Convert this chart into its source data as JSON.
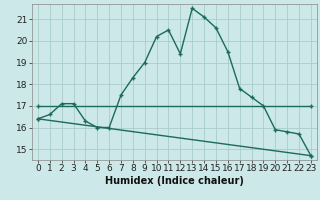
{
  "xlabel": "Humidex (Indice chaleur)",
  "background_color": "#cce8e8",
  "grid_color": "#aacccc",
  "line_color": "#1a6b5a",
  "xlim": [
    -0.5,
    23.5
  ],
  "ylim": [
    14.5,
    21.7
  ],
  "xticks": [
    0,
    1,
    2,
    3,
    4,
    5,
    6,
    7,
    8,
    9,
    10,
    11,
    12,
    13,
    14,
    15,
    16,
    17,
    18,
    19,
    20,
    21,
    22,
    23
  ],
  "yticks": [
    15,
    16,
    17,
    18,
    19,
    20,
    21
  ],
  "line1_x": [
    0,
    1,
    2,
    3,
    4,
    5,
    6,
    7,
    8,
    9,
    10,
    11,
    12,
    13,
    14,
    15,
    16,
    17,
    18,
    19,
    20,
    21,
    22,
    23
  ],
  "line1_y": [
    16.4,
    16.6,
    17.1,
    17.1,
    16.3,
    16.0,
    16.0,
    17.5,
    18.3,
    19.0,
    20.2,
    20.5,
    19.4,
    21.5,
    21.1,
    20.6,
    19.5,
    17.8,
    17.4,
    17.0,
    15.9,
    15.8,
    15.7,
    14.7
  ],
  "line2_x": [
    0,
    23
  ],
  "line2_y": [
    17.0,
    17.0
  ],
  "line3_x": [
    0,
    23
  ],
  "line3_y": [
    16.4,
    14.7
  ],
  "xlabel_fontsize": 7,
  "tick_fontsize": 6.5
}
